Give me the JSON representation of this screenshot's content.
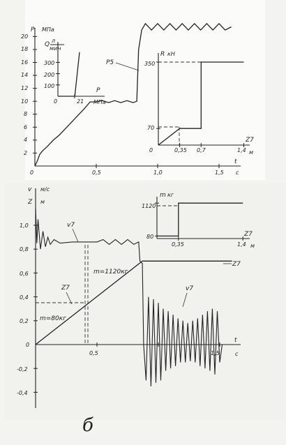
{
  "figure_label": "б",
  "chart_data": [
    {
      "type": "line",
      "panel": "top-main",
      "ylabel": "P",
      "yunit": "МПа",
      "xlabel": "t",
      "xunit": "с",
      "xlim": [
        0,
        1.7
      ],
      "ylim": [
        0,
        21
      ],
      "xticks": [
        "0",
        "0,5",
        "1,0",
        "1,5"
      ],
      "yticks": [
        "2",
        "4",
        "6",
        "8",
        "10",
        "12",
        "14",
        "16",
        "18",
        "20"
      ],
      "series": [
        {
          "name": "P5",
          "points": [
            [
              0.0,
              0.0
            ],
            [
              0.02,
              0.8
            ],
            [
              0.04,
              1.8
            ],
            [
              0.06,
              2.3
            ],
            [
              0.1,
              3.0
            ],
            [
              0.15,
              4.0
            ],
            [
              0.2,
              4.8
            ],
            [
              0.25,
              5.8
            ],
            [
              0.3,
              6.8
            ],
            [
              0.35,
              7.8
            ],
            [
              0.4,
              8.8
            ],
            [
              0.45,
              9.9
            ],
            [
              0.5,
              9.9
            ],
            [
              0.55,
              10.1
            ],
            [
              0.6,
              9.8
            ],
            [
              0.65,
              10.1
            ],
            [
              0.7,
              9.8
            ],
            [
              0.75,
              10.1
            ],
            [
              0.8,
              9.8
            ],
            [
              0.83,
              10.0
            ],
            [
              0.845,
              18.0
            ],
            [
              0.87,
              21.0
            ],
            [
              0.9,
              22.0
            ],
            [
              0.95,
              21.0
            ],
            [
              1.0,
              22.0
            ],
            [
              1.05,
              21.0
            ],
            [
              1.1,
              22.0
            ],
            [
              1.15,
              21.0
            ],
            [
              1.2,
              22.0
            ],
            [
              1.25,
              21.0
            ],
            [
              1.3,
              22.0
            ],
            [
              1.35,
              21.0
            ],
            [
              1.4,
              22.0
            ],
            [
              1.45,
              21.0
            ],
            [
              1.5,
              22.0
            ],
            [
              1.55,
              21.0
            ],
            [
              1.6,
              21.5
            ]
          ]
        }
      ]
    },
    {
      "type": "line",
      "panel": "top-inset-left",
      "ylabel": "Q",
      "yunit_num": "л",
      "yunit_den": "мин",
      "xlabel": "P",
      "xunit": "МПа",
      "xlim": [
        0,
        30
      ],
      "ylim": [
        0,
        400
      ],
      "xticks": [
        "0",
        "21"
      ],
      "yticks": [
        "100",
        "200",
        "300"
      ],
      "series": [
        {
          "points": [
            [
              0,
              0
            ],
            [
              21,
              0
            ],
            [
              27,
              390
            ]
          ]
        }
      ]
    },
    {
      "type": "line",
      "panel": "top-inset-right",
      "ylabel": "R",
      "yunit": "кН",
      "xlabel": "Z7",
      "xunit": "м",
      "xlim": [
        0,
        1.4
      ],
      "ylim": [
        0,
        400
      ],
      "xticks": [
        "0",
        "0,35",
        "0,7",
        "1,4"
      ],
      "yticks": [
        "70",
        "350"
      ],
      "series": [
        {
          "points": [
            [
              0,
              0
            ],
            [
              0.35,
              70
            ],
            [
              0.7,
              70
            ],
            [
              0.7,
              350
            ],
            [
              1.4,
              350
            ]
          ]
        }
      ]
    },
    {
      "type": "line",
      "panel": "bottom-main",
      "ylabel": "v",
      "yunit": "м/с",
      "ylabel2": "Z",
      "yunit2": "м",
      "xlabel": "t",
      "xunit": "с",
      "xlim": [
        0,
        1.7
      ],
      "ylim": [
        -0.45,
        1.2
      ],
      "xticks": [
        "0",
        "0,5",
        "1,5"
      ],
      "yticks": [
        "1,0",
        "0,8",
        "0,6",
        "0,4",
        "0,2",
        "0",
        "-0,2",
        "-0,4"
      ],
      "annotations": [
        "m=80кг",
        "m=1120кг"
      ],
      "series": [
        {
          "name": "v7",
          "points": [
            [
              0.0,
              1.15
            ],
            [
              0.01,
              0.85
            ],
            [
              0.02,
              1.05
            ],
            [
              0.04,
              0.8
            ],
            [
              0.06,
              0.95
            ],
            [
              0.08,
              0.82
            ],
            [
              0.1,
              0.9
            ],
            [
              0.12,
              0.84
            ],
            [
              0.15,
              0.88
            ],
            [
              0.2,
              0.85
            ],
            [
              0.3,
              0.86
            ],
            [
              0.4,
              0.86
            ],
            [
              0.45,
              0.86
            ],
            [
              0.5,
              0.86
            ],
            [
              0.55,
              0.88
            ],
            [
              0.6,
              0.84
            ],
            [
              0.65,
              0.88
            ],
            [
              0.7,
              0.84
            ],
            [
              0.75,
              0.88
            ],
            [
              0.8,
              0.84
            ],
            [
              0.84,
              0.86
            ],
            [
              0.85,
              0.7
            ],
            [
              0.87,
              0.68
            ],
            [
              0.88,
              0.0
            ],
            [
              0.9,
              -0.3
            ],
            [
              0.92,
              0.4
            ],
            [
              0.94,
              -0.35
            ],
            [
              0.96,
              0.38
            ],
            [
              0.98,
              -0.32
            ],
            [
              1.0,
              0.35
            ],
            [
              1.02,
              -0.3
            ],
            [
              1.04,
              0.3
            ],
            [
              1.06,
              -0.22
            ],
            [
              1.08,
              0.28
            ],
            [
              1.1,
              -0.2
            ],
            [
              1.12,
              0.25
            ],
            [
              1.14,
              -0.18
            ],
            [
              1.16,
              0.22
            ],
            [
              1.18,
              -0.15
            ],
            [
              1.2,
              0.2
            ],
            [
              1.22,
              -0.15
            ],
            [
              1.24,
              0.18
            ],
            [
              1.26,
              -0.14
            ],
            [
              1.28,
              0.2
            ],
            [
              1.3,
              -0.15
            ],
            [
              1.32,
              0.22
            ],
            [
              1.34,
              -0.18
            ],
            [
              1.36,
              0.25
            ],
            [
              1.38,
              -0.2
            ],
            [
              1.4,
              0.28
            ],
            [
              1.42,
              -0.22
            ],
            [
              1.44,
              0.3
            ],
            [
              1.46,
              -0.25
            ],
            [
              1.48,
              0.28
            ],
            [
              1.5,
              -0.15
            ],
            [
              1.52,
              0.0
            ]
          ]
        },
        {
          "name": "Z7",
          "points": [
            [
              0.0,
              0.0
            ],
            [
              0.87,
              0.7
            ],
            [
              1.6,
              0.7
            ]
          ]
        }
      ]
    },
    {
      "type": "line",
      "panel": "bottom-inset",
      "ylabel": "m",
      "yunit": "кг",
      "xlabel": "Z7",
      "xunit": "м",
      "xlim": [
        0,
        1.4
      ],
      "ylim": [
        0,
        1250
      ],
      "xticks": [
        "0,35",
        "1,4"
      ],
      "yticks": [
        "80",
        "1120"
      ],
      "series": [
        {
          "points": [
            [
              0,
              80
            ],
            [
              0.35,
              80
            ],
            [
              0.35,
              1120
            ],
            [
              1.4,
              1120
            ]
          ]
        }
      ]
    }
  ]
}
